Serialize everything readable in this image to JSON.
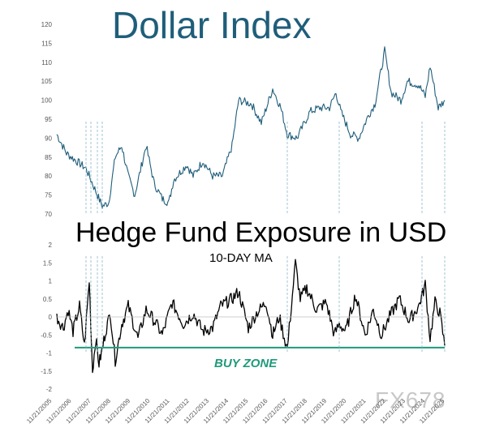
{
  "chart_data": [
    {
      "type": "line",
      "title": "Dollar Index",
      "xlabel": "",
      "ylabel": "",
      "ylim": [
        70,
        120
      ],
      "yticks": [
        70,
        75,
        80,
        85,
        90,
        95,
        100,
        105,
        110,
        115,
        120
      ],
      "series": [
        {
          "x": [
            "2005-11",
            "2006-05",
            "2006-11",
            "2007-05",
            "2007-11",
            "2008-03",
            "2008-07",
            "2008-11",
            "2009-03",
            "2009-07",
            "2009-11",
            "2010-06",
            "2010-11",
            "2011-04",
            "2011-08",
            "2011-11",
            "2012-07",
            "2012-11",
            "2013-05",
            "2013-11",
            "2014-05",
            "2014-11",
            "2015-03",
            "2015-11",
            "2016-05",
            "2016-12",
            "2017-05",
            "2017-09",
            "2018-03",
            "2018-11",
            "2019-05",
            "2019-11",
            "2020-03",
            "2020-06",
            "2020-12",
            "2021-05",
            "2021-11",
            "2022-03",
            "2022-09",
            "2023-01",
            "2023-07",
            "2023-11",
            "2024-06",
            "2024-10",
            "2025-01",
            "2025-06",
            "2025-10"
          ],
          "values": [
            91,
            86,
            84,
            82,
            76,
            72,
            73,
            85,
            88,
            80,
            75,
            88,
            78,
            74,
            73,
            79,
            83,
            80,
            84,
            80,
            80,
            88,
            100,
            99,
            94,
            103,
            98,
            91,
            90,
            97,
            98,
            98,
            102,
            97,
            91,
            90,
            96,
            99,
            113,
            102,
            100,
            105,
            104,
            101,
            109,
            98,
            100
          ]
        }
      ]
    },
    {
      "type": "line",
      "title": "Hedge Fund Exposure in USD",
      "subtitle": "10-DAY MA",
      "xlabel": "",
      "ylabel": "",
      "ylim": [
        -2,
        2
      ],
      "yticks": [
        -2,
        -1.5,
        -1,
        -0.5,
        0,
        0.5,
        1,
        1.5,
        2
      ],
      "xtick_labels": [
        "11/21/2005",
        "11/21/2006",
        "11/21/2007",
        "11/21/2008",
        "11/21/2009",
        "11/21/2010",
        "11/21/2011",
        "11/21/2012",
        "11/21/2013",
        "11/21/2014",
        "11/21/2015",
        "11/21/2016",
        "11/21/2017",
        "11/21/2018",
        "11/21/2019",
        "11/21/2020",
        "11/21/2021",
        "11/21/2022",
        "11/21/2023",
        "11/21/2024",
        "11/21/2025"
      ],
      "series": [
        {
          "x": [
            "2005-11",
            "2006-03",
            "2006-06",
            "2006-09",
            "2007-01",
            "2007-04",
            "2007-07",
            "2007-09",
            "2007-11",
            "2008-01",
            "2008-03",
            "2008-05",
            "2008-08",
            "2008-11",
            "2009-03",
            "2009-07",
            "2010-01",
            "2010-06",
            "2010-11",
            "2011-04",
            "2011-10",
            "2012-05",
            "2012-11",
            "2013-05",
            "2013-11",
            "2014-04",
            "2014-11",
            "2015-03",
            "2015-09",
            "2016-02",
            "2016-08",
            "2016-12",
            "2017-04",
            "2017-09",
            "2018-02",
            "2018-05",
            "2018-09",
            "2019-03",
            "2019-09",
            "2020-02",
            "2020-05",
            "2020-09",
            "2021-03",
            "2021-09",
            "2022-02",
            "2022-07",
            "2022-12",
            "2023-06",
            "2023-12",
            "2024-06",
            "2024-10",
            "2025-01",
            "2025-04",
            "2025-07",
            "2025-10"
          ],
          "values": [
            0,
            -0.3,
            0.2,
            -0.4,
            0.3,
            -0.8,
            1.0,
            -1.5,
            -0.6,
            -1.3,
            -0.9,
            -0.4,
            0.1,
            -1.2,
            -0.2,
            0.3,
            -0.6,
            0.2,
            -0.1,
            -0.5,
            0.4,
            -0.2,
            0.1,
            -0.4,
            -0.3,
            0.3,
            0.5,
            0.7,
            -0.3,
            0.1,
            0.4,
            -0.5,
            0.0,
            -0.9,
            1.5,
            0.5,
            0.8,
            0.2,
            0.4,
            -0.5,
            -0.2,
            -0.4,
            0.6,
            -0.5,
            0.2,
            -0.5,
            0.0,
            0.5,
            -0.1,
            0.3,
            0.9,
            -0.6,
            0.4,
            0.1,
            -0.8
          ]
        }
      ],
      "threshold": {
        "value": -0.85,
        "label": "BUY ZONE",
        "color": "#1f9a7a"
      }
    }
  ],
  "colors": {
    "dollar_line": "#1f5e7a",
    "exposure_line": "#000000",
    "buy_zone": "#1f9a7a",
    "grid": "#bfbfbf"
  },
  "markers": [
    "2007-05",
    "2007-08",
    "2007-12",
    "2008-03",
    "2017-09",
    "2020-05",
    "2024-08",
    "2025-10"
  ],
  "watermark": "FX678"
}
